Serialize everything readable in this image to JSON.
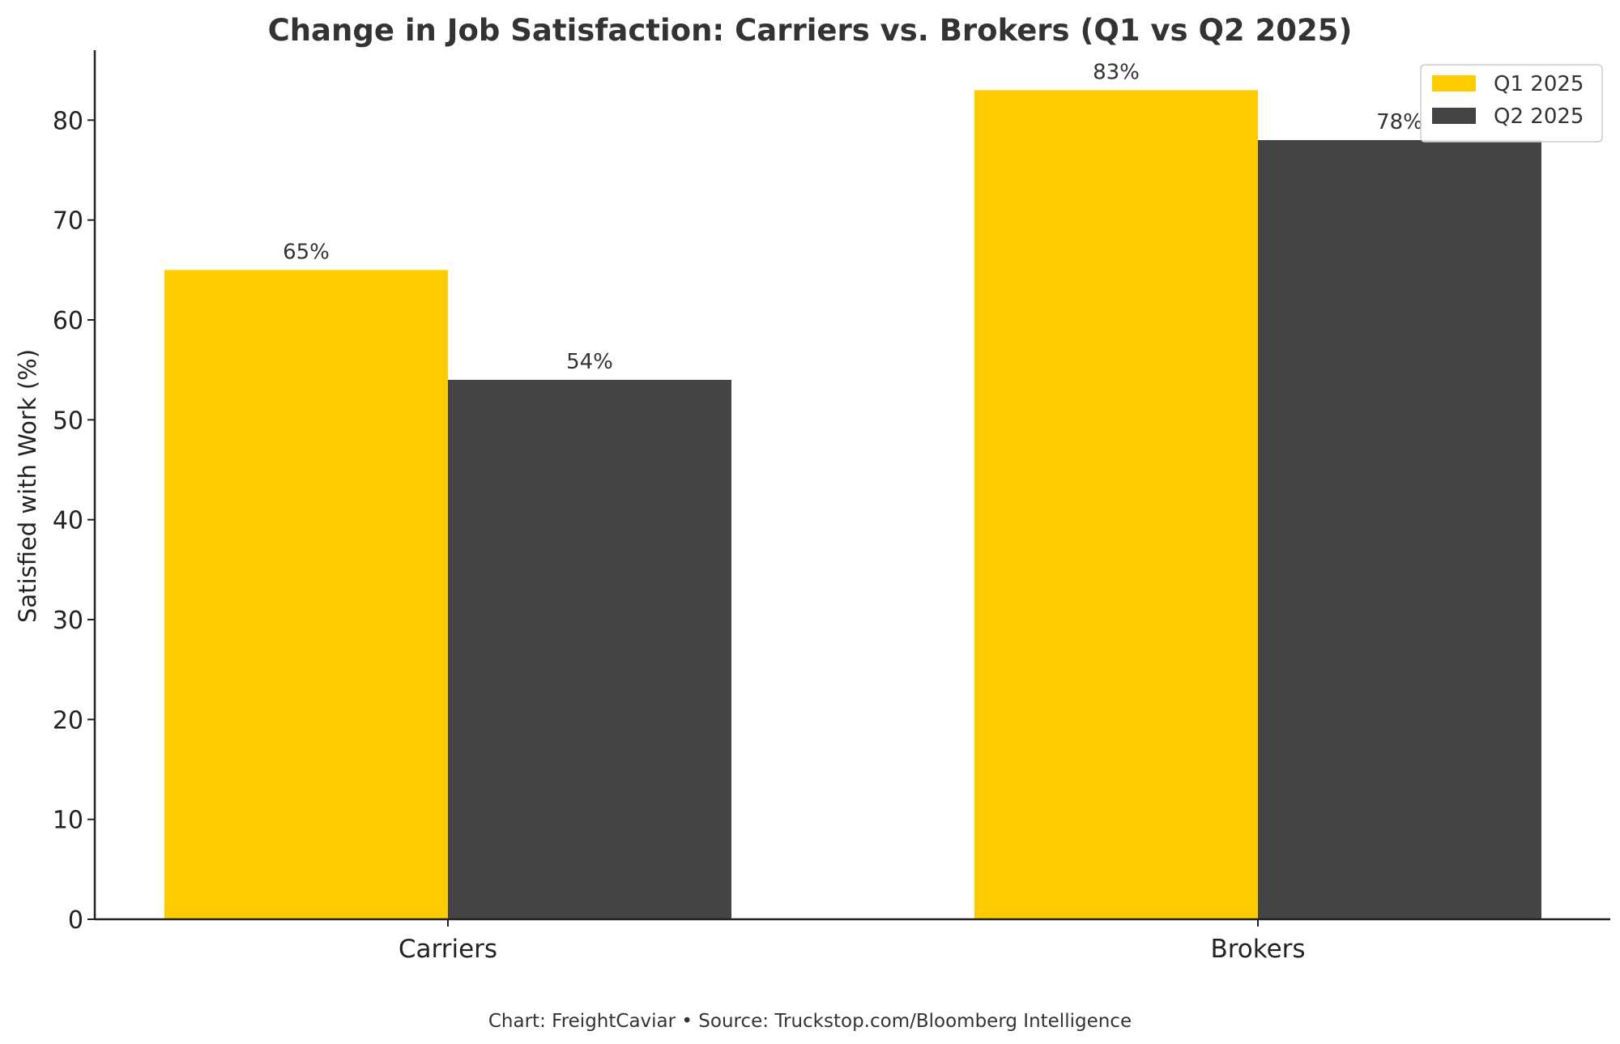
{
  "chart_data": {
    "type": "bar",
    "title": "Change in Job Satisfaction: Carriers vs. Brokers (Q1 vs Q2 2025)",
    "xlabel": "",
    "ylabel": "Satisfied with Work (%)",
    "categories": [
      "Carriers",
      "Brokers"
    ],
    "series": [
      {
        "name": "Q1 2025",
        "color": "#FFCC00",
        "values": [
          65,
          83
        ],
        "labels": [
          "65%",
          "83%"
        ]
      },
      {
        "name": "Q2 2025",
        "color": "#444444",
        "values": [
          54,
          78
        ],
        "labels": [
          "54%",
          "78%"
        ]
      }
    ],
    "ylim": [
      0,
      87
    ],
    "yticks": [
      0,
      10,
      20,
      30,
      40,
      50,
      60,
      70,
      80
    ],
    "grid": false,
    "legend_position": "top-right"
  },
  "footer": "Chart: FreightCaviar • Source: Truckstop.com/Bloomberg Intelligence"
}
